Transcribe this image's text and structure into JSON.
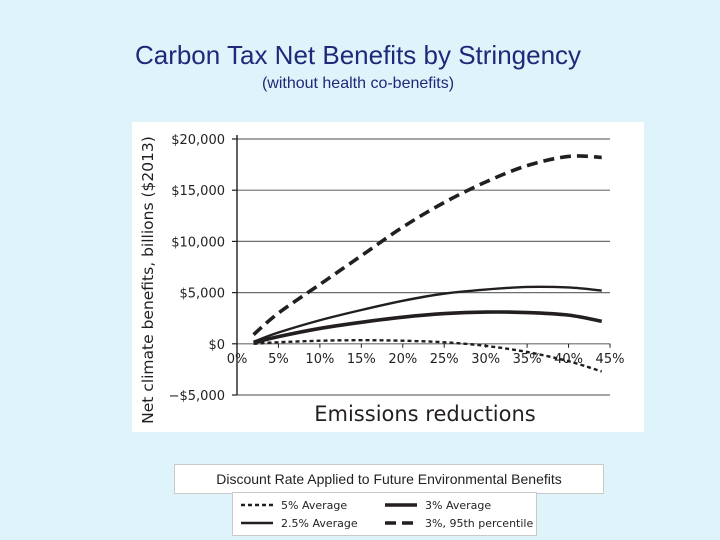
{
  "slide": {
    "title": "Carbon Tax Net Benefits by Stringency",
    "subtitle": "(without health co-benefits)",
    "caption": "Discount Rate Applied to Future Environmental Benefits"
  },
  "colors": {
    "background": "#dff3fb",
    "title": "#1d2a7a",
    "ink": "#231f20"
  },
  "chart_data": {
    "type": "line",
    "title": "",
    "xlabel": "Emissions reductions",
    "ylabel": "Net climate benefits, billions ($2013)",
    "xlim": [
      0,
      45
    ],
    "ylim": [
      -5000,
      20000
    ],
    "x_ticks": [
      0,
      5,
      10,
      15,
      20,
      25,
      30,
      35,
      40,
      45
    ],
    "x_tick_labels": [
      "0%",
      "5%",
      "10%",
      "15%",
      "20%",
      "25%",
      "30%",
      "35%",
      "40%",
      "45%"
    ],
    "y_ticks": [
      -5000,
      0,
      5000,
      10000,
      15000,
      20000
    ],
    "y_tick_labels": [
      "−$5,000",
      "$0",
      "$5,000",
      "$10,000",
      "$15,000",
      "$20,000"
    ],
    "x": [
      2,
      5,
      10,
      15,
      20,
      25,
      30,
      35,
      40,
      44
    ],
    "series": [
      {
        "name": "5% Average",
        "style": "short-dash",
        "width": "thin",
        "values": [
          0,
          150,
          300,
          350,
          300,
          150,
          -200,
          -800,
          -1700,
          -2700
        ]
      },
      {
        "name": "3% Average",
        "style": "solid",
        "width": "thick",
        "values": [
          100,
          700,
          1500,
          2100,
          2600,
          2950,
          3100,
          3050,
          2800,
          2200
        ]
      },
      {
        "name": "2.5% Average",
        "style": "solid",
        "width": "thin",
        "values": [
          200,
          1100,
          2300,
          3300,
          4200,
          4900,
          5300,
          5550,
          5500,
          5200
        ]
      },
      {
        "name": "3%, 95th percentile",
        "style": "long-dash",
        "width": "thick",
        "values": [
          900,
          3000,
          5800,
          8600,
          11400,
          13800,
          15800,
          17400,
          18300,
          18200
        ]
      }
    ],
    "grid": "horizontal",
    "legend_position": "bottom"
  }
}
